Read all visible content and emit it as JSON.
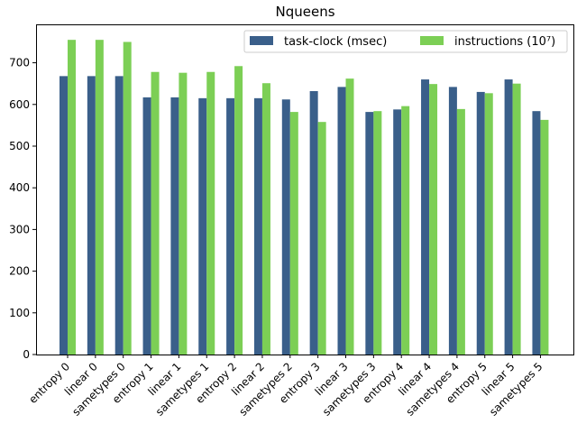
{
  "chart_data": {
    "type": "bar",
    "title": "Nqueens",
    "xlabel": "",
    "ylabel": "",
    "ylim": [
      0,
      790
    ],
    "yticks": [
      0,
      100,
      200,
      300,
      400,
      500,
      600,
      700
    ],
    "grid": false,
    "legend_position": "top-right",
    "categories": [
      "entropy 0",
      "linear 0",
      "sametypes 0",
      "entropy 1",
      "linear 1",
      "sametypes 1",
      "entropy 2",
      "linear 2",
      "sametypes 2",
      "entropy 3",
      "linear 3",
      "sametypes 3",
      "entropy 4",
      "linear 4",
      "sametypes 4",
      "entropy 5",
      "linear 5",
      "sametypes 5"
    ],
    "series": [
      {
        "name": "task-clock (msec)",
        "color": "#3a5f8a",
        "values": [
          668,
          668,
          668,
          617,
          617,
          615,
          615,
          615,
          612,
          632,
          642,
          582,
          588,
          660,
          642,
          630,
          660,
          584
        ]
      },
      {
        "name": "instructions (10⁷)",
        "color": "#7ccf55",
        "values": [
          755,
          755,
          750,
          678,
          676,
          678,
          692,
          651,
          582,
          558,
          662,
          584,
          596,
          649,
          589,
          627,
          650,
          563
        ]
      }
    ]
  }
}
